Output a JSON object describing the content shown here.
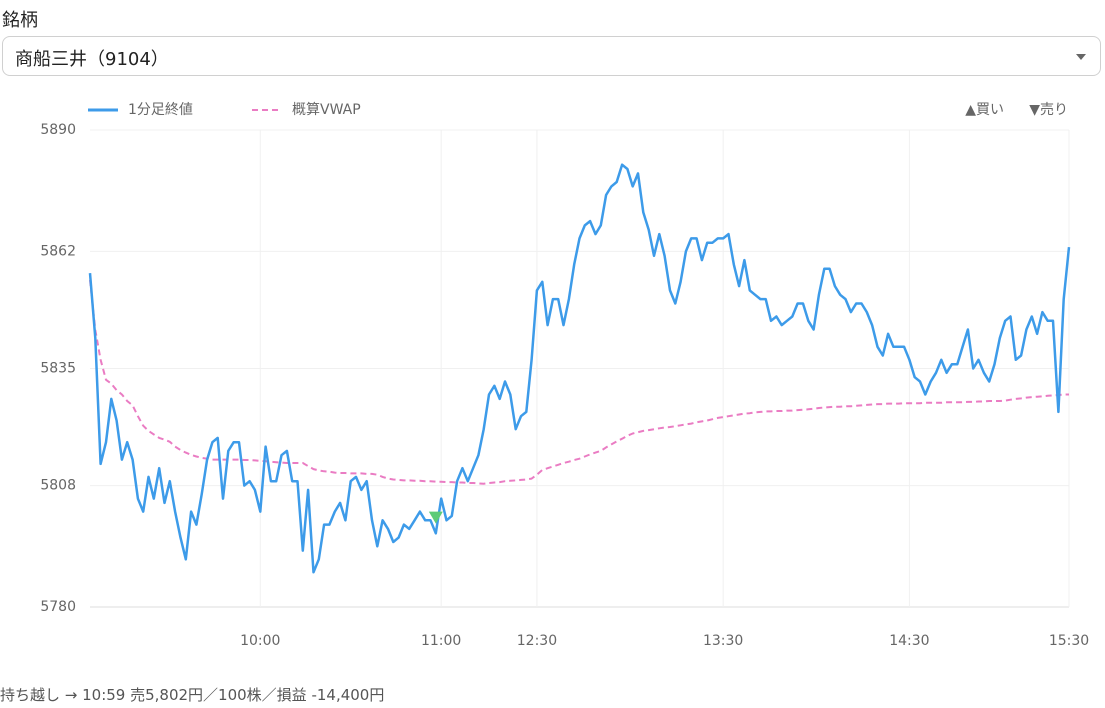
{
  "label": "銘柄",
  "select": "商船三井（9104）",
  "chart_data": {
    "type": "line",
    "categories": [
      null,
      null,
      null,
      null,
      null,
      null,
      null,
      null,
      null,
      null,
      null,
      null,
      null,
      null,
      null,
      null,
      null,
      null,
      null,
      null,
      null,
      null,
      null,
      null,
      null,
      null,
      null,
      null,
      null,
      null,
      null,
      null,
      "10:00",
      null,
      null,
      null,
      null,
      null,
      null,
      null,
      null,
      null,
      null,
      null,
      null,
      null,
      null,
      null,
      null,
      null,
      null,
      null,
      null,
      null,
      null,
      null,
      null,
      null,
      null,
      null,
      null,
      null,
      null,
      null,
      null,
      null,
      "11:00",
      null,
      null,
      null,
      null,
      null,
      null,
      null,
      null,
      null,
      null,
      null,
      null,
      null,
      null,
      null,
      null,
      null,
      "12:30",
      null,
      null,
      null,
      null,
      null,
      null,
      null,
      null,
      null,
      null,
      null,
      null,
      null,
      null,
      null,
      null,
      null,
      null,
      null,
      null,
      null,
      null,
      null,
      null,
      null,
      null,
      null,
      null,
      null,
      null,
      null,
      null,
      null,
      null,
      "13:30",
      null,
      null,
      null,
      null,
      null,
      null,
      null,
      null,
      null,
      null,
      null,
      null,
      null,
      null,
      null,
      null,
      null,
      null,
      null,
      null,
      null,
      null,
      null,
      null,
      null,
      null,
      null,
      null,
      null,
      null,
      null,
      null,
      null,
      null,
      "14:30",
      null,
      null,
      null,
      null,
      null,
      null,
      null,
      null,
      null,
      null,
      null,
      null,
      null,
      null,
      null,
      null,
      null,
      null,
      null,
      null,
      null,
      null,
      null,
      null,
      null,
      null,
      null,
      null,
      null,
      "15:30"
    ],
    "series": [
      {
        "name": "1分足終値",
        "color": "#3d9be9",
        "values": [
          5857,
          5842,
          5813,
          5818,
          5828,
          5823,
          5814,
          5818,
          5814,
          5805,
          5802,
          5810,
          5805,
          5812,
          5804,
          5809,
          5802,
          5796,
          5791,
          5802,
          5799,
          5806,
          5814,
          5818,
          5819,
          5805,
          5816,
          5818,
          5818,
          5808,
          5809,
          5807,
          5802,
          5817,
          5809,
          5809,
          5815,
          5816,
          5809,
          5809,
          5793,
          5807,
          5788,
          5791,
          5799,
          5799,
          5802,
          5804,
          5800,
          5809,
          5810,
          5807,
          5809,
          5800,
          5794,
          5800,
          5798,
          5795,
          5796,
          5799,
          5798,
          5800,
          5802,
          5800,
          5800,
          5797,
          5805,
          5800,
          5801,
          5809,
          5812,
          5809,
          5812,
          5815,
          5821,
          5829,
          5831,
          5828,
          5832,
          5829,
          5821,
          5824,
          5825,
          5837,
          5853,
          5855,
          5845,
          5851,
          5851,
          5845,
          5851,
          5859,
          5865,
          5868,
          5869,
          5866,
          5868,
          5875,
          5877,
          5878,
          5882,
          5881,
          5877,
          5880,
          5871,
          5867,
          5861,
          5866,
          5861,
          5853,
          5850,
          5855,
          5862,
          5865,
          5865,
          5860,
          5864,
          5864,
          5865,
          5865,
          5866,
          5859,
          5854,
          5860,
          5853,
          5852,
          5851,
          5851,
          5846,
          5847,
          5845,
          5846,
          5847,
          5850,
          5850,
          5846,
          5844,
          5852,
          5858,
          5858,
          5854,
          5852,
          5851,
          5848,
          5850,
          5850,
          5848,
          5845,
          5840,
          5838,
          5843,
          5840,
          5840,
          5840,
          5837,
          5833,
          5832,
          5829,
          5832,
          5834,
          5837,
          5834,
          5836,
          5836,
          5840,
          5844,
          5835,
          5837,
          5834,
          5832,
          5836,
          5842,
          5846,
          5847,
          5837,
          5838,
          5844,
          5847,
          5843,
          5848,
          5846,
          5846,
          5825,
          5851,
          5863
        ]
      },
      {
        "name": "概算VWAP",
        "color": "#ea7cc3",
        "dash": true,
        "values": [
          5855.4,
          5843.9,
          5837,
          5832.4,
          5831.5,
          5830,
          5829,
          5827.5,
          5826.5,
          5824,
          5821.8,
          5820.6,
          5819.8,
          5819,
          5818.6,
          5818.1,
          5817,
          5816.2,
          5815.6,
          5815.1,
          5814.7,
          5814.4,
          5814.2,
          5814,
          5814,
          5814,
          5814,
          5814,
          5814,
          5813.9,
          5813.9,
          5813.8,
          5813.7,
          5813.6,
          5813.5,
          5813.4,
          5813.3,
          5813.2,
          5813.2,
          5813.2,
          5813.2,
          5812.5,
          5811.8,
          5811.5,
          5811.3,
          5811.2,
          5811,
          5810.9,
          5810.9,
          5810.8,
          5810.8,
          5810.8,
          5810.7,
          5810.7,
          5810.5,
          5810,
          5809.6,
          5809.4,
          5809.3,
          5809.2,
          5809.2,
          5809.1,
          5809.1,
          5809,
          5809,
          5808.9,
          5808.9,
          5808.8,
          5808.8,
          5808.7,
          5808.7,
          5808.6,
          5808.6,
          5808.5,
          5808.4,
          5808.6,
          5808.7,
          5808.8,
          5809,
          5809.1,
          5809.2,
          5809.3,
          5809.4,
          5809.6,
          5810.5,
          5811.6,
          5812,
          5812.4,
          5812.8,
          5813.2,
          5813.5,
          5813.9,
          5814.2,
          5814.7,
          5815.2,
          5815.6,
          5816,
          5816.8,
          5817.5,
          5818.2,
          5818.8,
          5819.5,
          5820,
          5820.3,
          5820.6,
          5820.8,
          5821,
          5821.2,
          5821.4,
          5821.5,
          5821.7,
          5821.9,
          5822.1,
          5822.3,
          5822.6,
          5822.8,
          5823,
          5823.3,
          5823.6,
          5823.8,
          5824,
          5824.2,
          5824.4,
          5824.6,
          5824.7,
          5824.9,
          5825,
          5825.1,
          5825.1,
          5825.2,
          5825.2,
          5825.3,
          5825.3,
          5825.4,
          5825.5,
          5825.6,
          5825.7,
          5825.9,
          5826,
          5826.1,
          5826.2,
          5826.2,
          5826.3,
          5826.3,
          5826.4,
          5826.5,
          5826.6,
          5826.7,
          5826.8,
          5826.8,
          5826.9,
          5826.9,
          5826.9,
          5827,
          5827,
          5827,
          5827,
          5827.1,
          5827.1,
          5827.1,
          5827.1,
          5827.2,
          5827.2,
          5827.2,
          5827.2,
          5827.3,
          5827.3,
          5827.4,
          5827.4,
          5827.5,
          5827.5,
          5827.5,
          5827.6,
          5827.8,
          5828,
          5828.1,
          5828.3,
          5828.4,
          5828.5,
          5828.6,
          5828.7,
          5828.8,
          5828.9,
          5829,
          5829
        ]
      }
    ],
    "ylim": [
      5780,
      5890
    ],
    "yticks": [
      5780,
      5808,
      5835,
      5862,
      5890
    ],
    "grid": true,
    "legend": "top-left",
    "trade_legend": [
      "▲買い",
      "▼売り"
    ],
    "markers": [
      {
        "index": 65,
        "value": 5802,
        "color": "#5ccb78"
      }
    ]
  },
  "footer": "持ち越し → 10:59 売5,802円／100株／損益 -14,400円"
}
